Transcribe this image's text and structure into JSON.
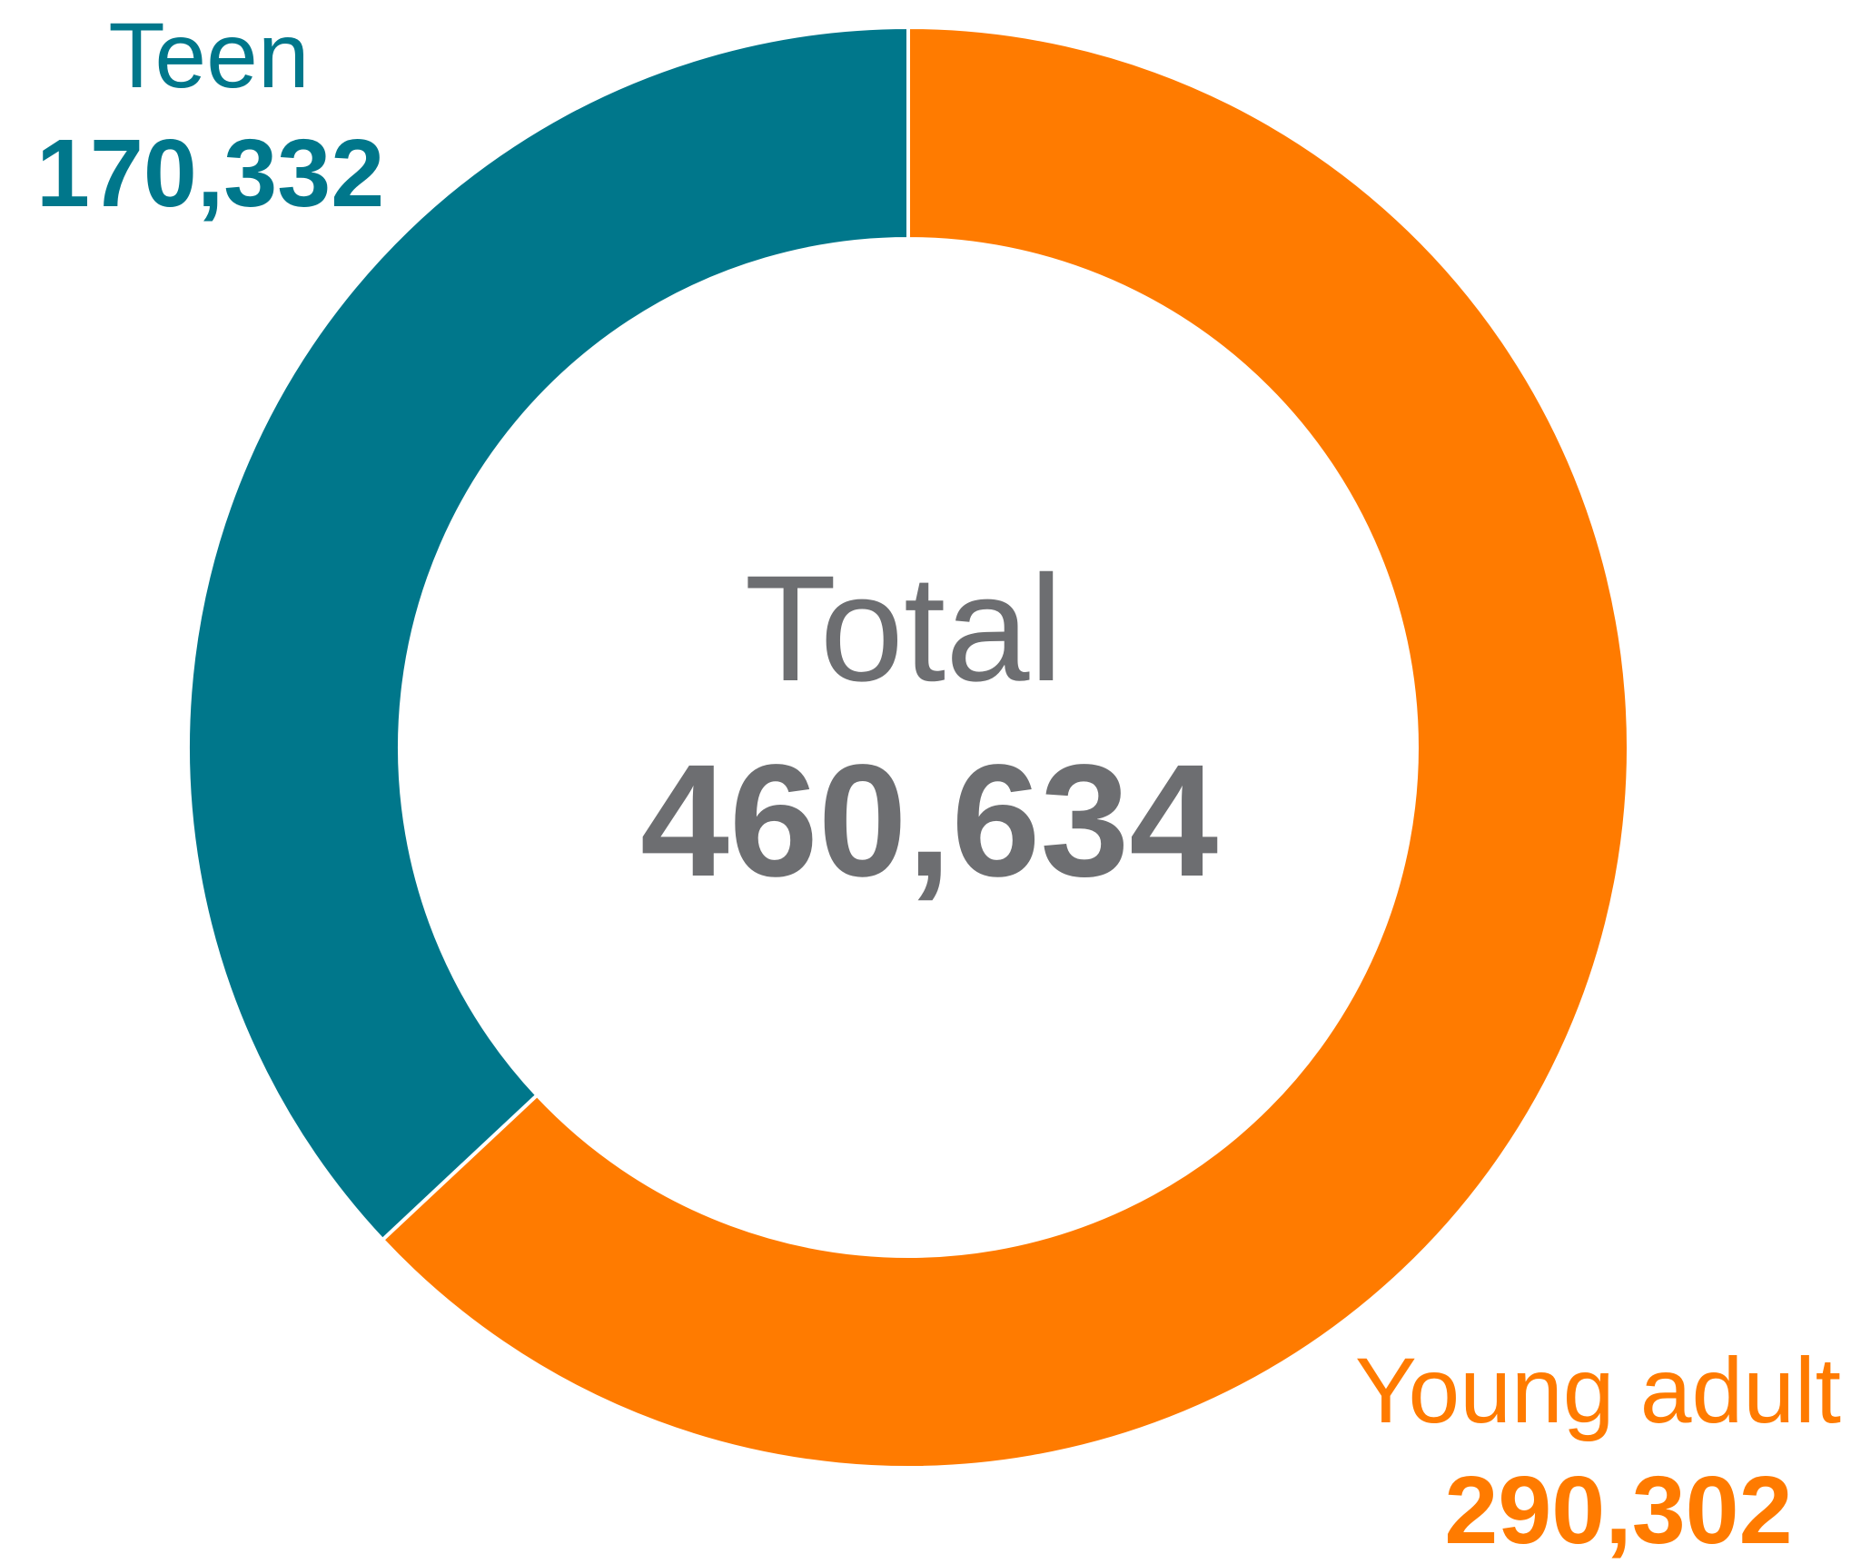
{
  "chart_data": {
    "type": "donut",
    "center": {
      "title": "Total",
      "value": "460,634"
    },
    "slices": [
      {
        "name": "Teen",
        "value": 170332,
        "display": "170,332",
        "color": "#00778b"
      },
      {
        "name": "Young adult",
        "value": 290302,
        "display": "290,302",
        "color": "#ff7b00"
      }
    ],
    "total": 460634,
    "start_angle": "12 o'clock",
    "direction": "clockwise",
    "order": "Young adult first, then Teen",
    "slice_border_color": "#ffffff"
  }
}
